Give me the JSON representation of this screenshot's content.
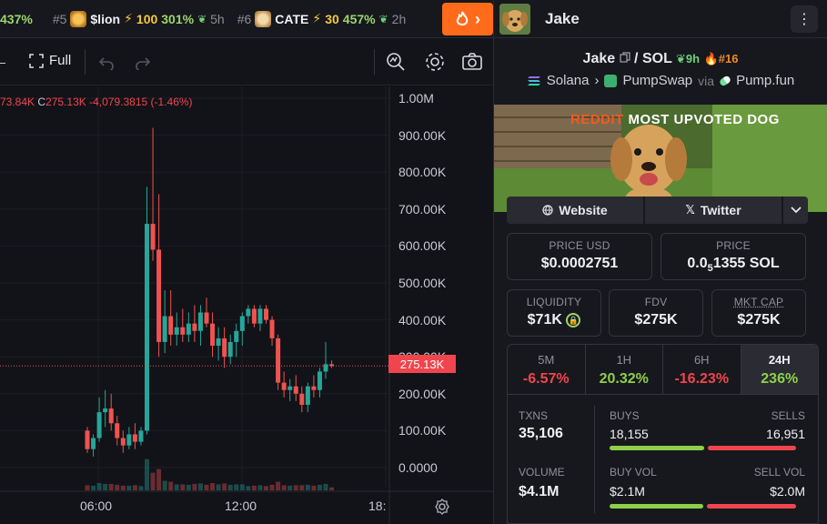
{
  "ticker": {
    "items": [
      {
        "rank": "",
        "symbol": "",
        "boost": "",
        "pct": "437%",
        "age": ""
      },
      {
        "rank": "#5",
        "symbol": "$lion",
        "boost": "100",
        "pct": "301%",
        "age": "5h"
      },
      {
        "rank": "#6",
        "symbol": "CATE",
        "boost": "30",
        "pct": "457%",
        "age": "2h"
      }
    ],
    "fire_arrow": "›"
  },
  "toolbar": {
    "full_label": "Full",
    "undo_icon": "undo-icon",
    "redo_icon": "redo-icon"
  },
  "chart": {
    "legend": {
      "prefix": "73.84K",
      "close_label": "C",
      "close_value": "275.13K",
      "change": "-4,079.3815 (-1.46%)"
    },
    "price_tag": "275.13K",
    "y_ticks": [
      "1.00M",
      "900.00K",
      "800.00K",
      "700.00K",
      "600.00K",
      "500.00K",
      "400.00K",
      "300.00K",
      "200.00K",
      "100.00K",
      "0.0000"
    ],
    "x_ticks": [
      "06:00",
      "12:00",
      "18:"
    ],
    "colors": {
      "up": "#26a69a",
      "down": "#ef5350"
    }
  },
  "chart_data": {
    "type": "bar",
    "title": "",
    "xlabel": "",
    "ylabel": "",
    "ylim": [
      0,
      1000000
    ],
    "candles": [
      {
        "t": "04:50",
        "o": 100000,
        "h": 110000,
        "l": 40000,
        "c": 50000
      },
      {
        "t": "05:00",
        "o": 50000,
        "h": 90000,
        "l": 30000,
        "c": 80000
      },
      {
        "t": "05:15",
        "o": 80000,
        "h": 190000,
        "l": 70000,
        "c": 150000
      },
      {
        "t": "05:30",
        "o": 150000,
        "h": 210000,
        "l": 110000,
        "c": 160000
      },
      {
        "t": "05:45",
        "o": 160000,
        "h": 200000,
        "l": 100000,
        "c": 120000
      },
      {
        "t": "06:00",
        "o": 120000,
        "h": 140000,
        "l": 60000,
        "c": 80000
      },
      {
        "t": "06:15",
        "o": 80000,
        "h": 100000,
        "l": 40000,
        "c": 60000
      },
      {
        "t": "06:30",
        "o": 60000,
        "h": 110000,
        "l": 50000,
        "c": 90000
      },
      {
        "t": "06:45",
        "o": 90000,
        "h": 120000,
        "l": 50000,
        "c": 70000
      },
      {
        "t": "07:00",
        "o": 70000,
        "h": 110000,
        "l": 60000,
        "c": 100000
      },
      {
        "t": "07:15",
        "o": 100000,
        "h": 760000,
        "l": 90000,
        "c": 660000
      },
      {
        "t": "07:30",
        "o": 660000,
        "h": 920000,
        "l": 560000,
        "c": 590000
      },
      {
        "t": "07:45",
        "o": 590000,
        "h": 740000,
        "l": 300000,
        "c": 340000
      },
      {
        "t": "08:00",
        "o": 340000,
        "h": 480000,
        "l": 310000,
        "c": 410000
      },
      {
        "t": "08:15",
        "o": 410000,
        "h": 480000,
        "l": 330000,
        "c": 360000
      },
      {
        "t": "08:30",
        "o": 360000,
        "h": 420000,
        "l": 330000,
        "c": 380000
      },
      {
        "t": "08:45",
        "o": 380000,
        "h": 430000,
        "l": 340000,
        "c": 360000
      },
      {
        "t": "09:00",
        "o": 360000,
        "h": 420000,
        "l": 340000,
        "c": 390000
      },
      {
        "t": "09:15",
        "o": 390000,
        "h": 440000,
        "l": 340000,
        "c": 370000
      },
      {
        "t": "09:30",
        "o": 370000,
        "h": 440000,
        "l": 330000,
        "c": 420000
      },
      {
        "t": "09:45",
        "o": 420000,
        "h": 460000,
        "l": 380000,
        "c": 390000
      },
      {
        "t": "10:00",
        "o": 390000,
        "h": 420000,
        "l": 300000,
        "c": 330000
      },
      {
        "t": "10:15",
        "o": 330000,
        "h": 380000,
        "l": 290000,
        "c": 350000
      },
      {
        "t": "10:30",
        "o": 350000,
        "h": 380000,
        "l": 270000,
        "c": 300000
      },
      {
        "t": "10:45",
        "o": 300000,
        "h": 360000,
        "l": 280000,
        "c": 340000
      },
      {
        "t": "11:00",
        "o": 340000,
        "h": 390000,
        "l": 300000,
        "c": 370000
      },
      {
        "t": "11:15",
        "o": 370000,
        "h": 420000,
        "l": 330000,
        "c": 410000
      },
      {
        "t": "11:30",
        "o": 410000,
        "h": 440000,
        "l": 390000,
        "c": 430000
      },
      {
        "t": "11:45",
        "o": 430000,
        "h": 440000,
        "l": 380000,
        "c": 390000
      },
      {
        "t": "12:00",
        "o": 390000,
        "h": 440000,
        "l": 370000,
        "c": 430000
      },
      {
        "t": "12:15",
        "o": 430000,
        "h": 440000,
        "l": 390000,
        "c": 400000
      },
      {
        "t": "12:30",
        "o": 400000,
        "h": 410000,
        "l": 330000,
        "c": 350000
      },
      {
        "t": "12:45",
        "o": 350000,
        "h": 360000,
        "l": 210000,
        "c": 230000
      },
      {
        "t": "13:00",
        "o": 230000,
        "h": 260000,
        "l": 190000,
        "c": 210000
      },
      {
        "t": "13:15",
        "o": 210000,
        "h": 240000,
        "l": 180000,
        "c": 220000
      },
      {
        "t": "13:30",
        "o": 220000,
        "h": 250000,
        "l": 180000,
        "c": 200000
      },
      {
        "t": "13:45",
        "o": 200000,
        "h": 220000,
        "l": 150000,
        "c": 170000
      },
      {
        "t": "14:00",
        "o": 170000,
        "h": 230000,
        "l": 150000,
        "c": 220000
      },
      {
        "t": "14:15",
        "o": 220000,
        "h": 250000,
        "l": 190000,
        "c": 210000
      },
      {
        "t": "14:30",
        "o": 210000,
        "h": 270000,
        "l": 190000,
        "c": 260000
      },
      {
        "t": "14:45",
        "o": 260000,
        "h": 340000,
        "l": 240000,
        "c": 280000
      },
      {
        "t": "15:00",
        "o": 280000,
        "h": 290000,
        "l": 270000,
        "c": 275130
      }
    ],
    "volume_max": 110000
  },
  "panel": {
    "title": "Jake",
    "pair_base": "Jake",
    "pair_sep": "/",
    "pair_quote": "SOL",
    "age": "9h",
    "rank": "#16",
    "chain": "Solana",
    "dex": "PumpSwap",
    "via": "via",
    "launchpad": "Pump.fun",
    "banner_red": "REDDIT",
    "banner_text": "MOST UPVOTED DOG",
    "website": "Website",
    "twitter": "Twitter",
    "price_usd_label": "PRICE USD",
    "price_usd": "$0.0002751",
    "price_label": "PRICE",
    "price_sol_a": "0.0",
    "price_sol_sub": "5",
    "price_sol_b": "1355 SOL",
    "liquidity_label": "LIQUIDITY",
    "liquidity": "$71K",
    "fdv_label": "FDV",
    "fdv": "$275K",
    "mktcap_label": "MKT CAP",
    "mktcap": "$275K",
    "timeframes": [
      {
        "label": "5M",
        "value": "-6.57%",
        "dir": "down"
      },
      {
        "label": "1H",
        "value": "20.32%",
        "dir": "up"
      },
      {
        "label": "6H",
        "value": "-16.23%",
        "dir": "down"
      },
      {
        "label": "24H",
        "value": "236%",
        "dir": "up"
      }
    ],
    "txns_label": "TXNS",
    "txns": "35,106",
    "buys_label": "BUYS",
    "buys": "18,155",
    "sells_label": "SELLS",
    "sells": "16,951",
    "volume_label": "VOLUME",
    "volume": "$4.1M",
    "buy_vol_label": "BUY VOL",
    "buy_vol": "$2.1M",
    "sell_vol_label": "SELL VOL",
    "sell_vol": "$2.0M",
    "buy_ratio": 0.517,
    "buy_vol_ratio": 0.512,
    "colors": {
      "buy": "#8cd04a",
      "sell": "#f0454e",
      "orange": "#ff6b1a"
    }
  }
}
